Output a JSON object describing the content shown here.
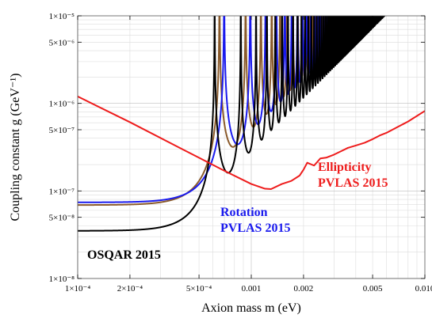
{
  "chart_data": {
    "type": "line",
    "x_scale": "log",
    "y_scale": "log",
    "xlim": [
      0.0001,
      0.01
    ],
    "ylim": [
      1e-08,
      1e-05
    ],
    "grid": true,
    "xlabel": "Axion mass m (eV)",
    "ylabel": "Coupling constant g (GeV⁻¹)",
    "x_ticks": [
      {
        "value": 0.0001,
        "label": "1×10⁻⁴"
      },
      {
        "value": 0.0002,
        "label": "2×10⁻⁴"
      },
      {
        "value": 0.0005,
        "label": "5×10⁻⁴"
      },
      {
        "value": 0.001,
        "label": "0.001"
      },
      {
        "value": 0.002,
        "label": "0.002"
      },
      {
        "value": 0.005,
        "label": "0.005"
      },
      {
        "value": 0.01,
        "label": "0.010"
      }
    ],
    "y_ticks": [
      {
        "value": 1e-08,
        "label": "1×10⁻⁸"
      },
      {
        "value": 5e-08,
        "label": "5×10⁻⁸"
      },
      {
        "value": 1e-07,
        "label": "1×10⁻⁷"
      },
      {
        "value": 5e-07,
        "label": "5×10⁻⁷"
      },
      {
        "value": 1e-06,
        "label": "1×10⁻⁶"
      },
      {
        "value": 5e-06,
        "label": "5×10⁻⁶"
      },
      {
        "value": 1e-05,
        "label": "1×10⁻⁵"
      }
    ],
    "series": [
      {
        "id": "ellipticity",
        "label_lines": [
          "Ellipticity",
          "PVLAS 2015"
        ],
        "color": "#ee1c1c",
        "x": [
          0.0001,
          0.0002,
          0.0004,
          0.0007,
          0.001,
          0.0012,
          0.0013,
          0.0015,
          0.0017,
          0.0019,
          0.002,
          0.0021,
          0.0023,
          0.0025,
          0.0027,
          0.003,
          0.0033,
          0.0036,
          0.004,
          0.0045,
          0.005,
          0.0055,
          0.006,
          0.007,
          0.008,
          0.01
        ],
        "y": [
          1.2e-06,
          6.1e-07,
          3e-07,
          1.7e-07,
          1.2e-07,
          1.06e-07,
          1.05e-07,
          1.2e-07,
          1.3e-07,
          1.5e-07,
          1.75e-07,
          2.1e-07,
          1.95e-07,
          2.35e-07,
          2.4e-07,
          2.6e-07,
          2.85e-07,
          3.1e-07,
          3.3e-07,
          3.55e-07,
          3.9e-07,
          4.3e-07,
          4.6e-07,
          5.4e-07,
          6.2e-07,
          8.2e-07
        ]
      },
      {
        "id": "osqar",
        "label_lines": [
          "OSQAR 2015"
        ],
        "color": "#000000",
        "plateau": 3.5e-08,
        "amplitude": 4.6e-08,
        "period_factor": 16.6
      },
      {
        "id": "pvlas-rotation-brown",
        "label_lines": [],
        "color": "#8a5a2b",
        "plateau": 6.9e-08,
        "amplitude": 4.5e-08,
        "period_factor": 14.6
      },
      {
        "id": "pvlas-rotation",
        "label_lines": [
          "Rotation",
          "PVLAS 2015"
        ],
        "color": "#1a1aee",
        "plateau": 7.4e-08,
        "amplitude": 4.2e-08,
        "period_factor": 12.9
      }
    ]
  }
}
